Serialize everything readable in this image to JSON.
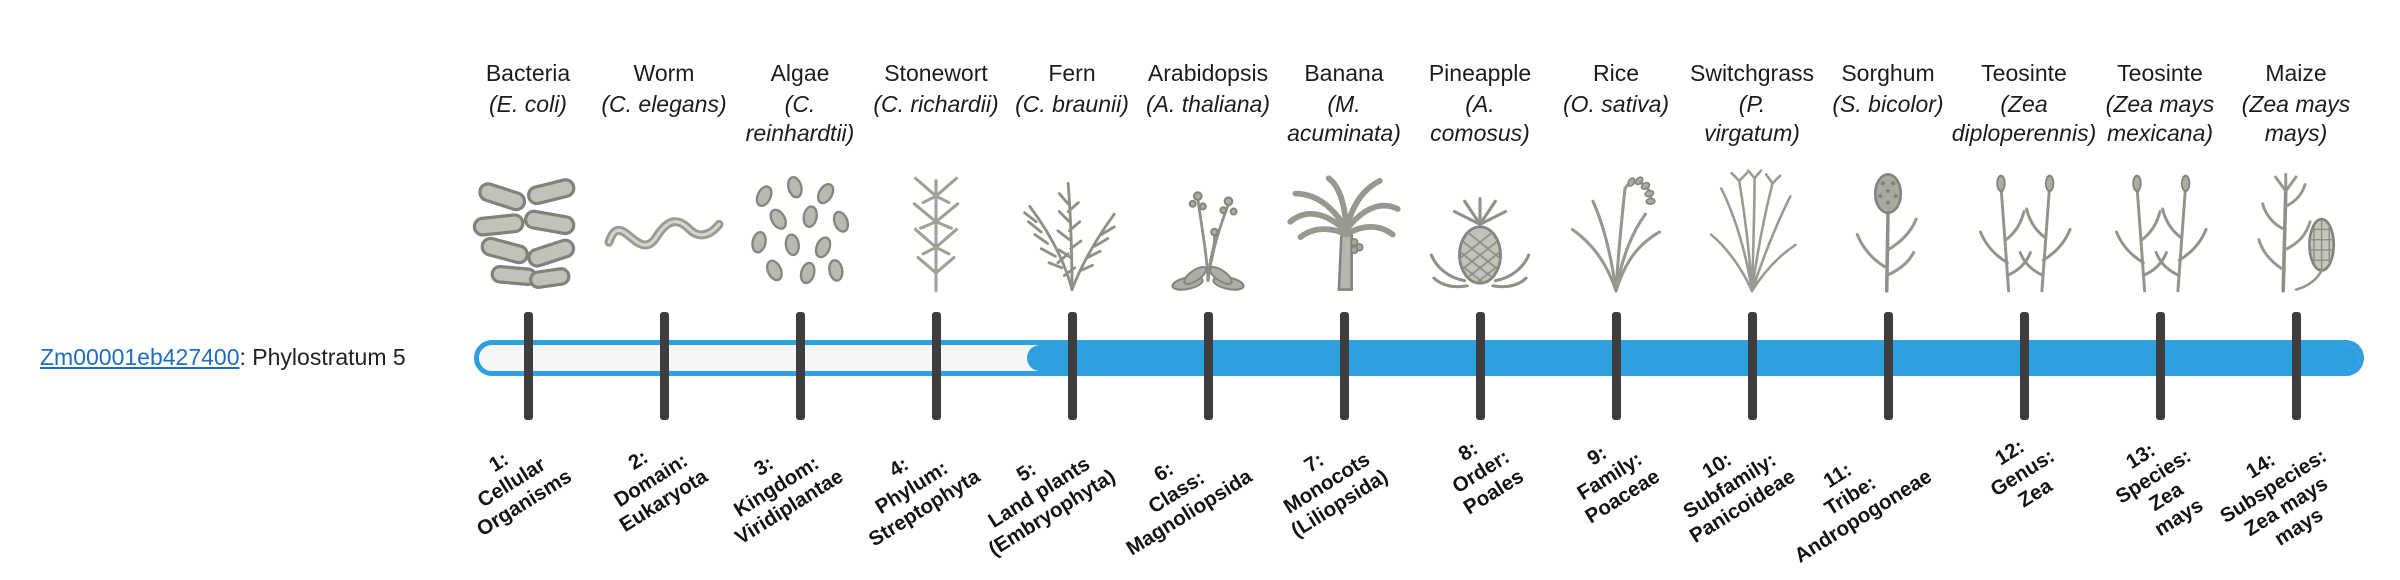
{
  "gene": {
    "id": "Zm00001eb427400",
    "suffix": ": Phylostratum 5",
    "phylostratum": 5,
    "link_color": "#1f6dbf"
  },
  "timeline": {
    "bar_color": "#2E9FDF",
    "bar_empty_color": "#f5f6f7",
    "tick_color": "#3d3d3d",
    "filled_from_stratum": 5,
    "columns": [
      {
        "common": "Bacteria",
        "sci": "(E. coli)",
        "icon": "bacteria",
        "stratum_label": "1:\nCellular\nOrganisms"
      },
      {
        "common": "Worm",
        "sci": "(C. elegans)",
        "icon": "worm",
        "stratum_label": "2:\nDomain:\nEukaryota"
      },
      {
        "common": "Algae",
        "sci": "(C.\nreinhardtii)",
        "icon": "algae",
        "stratum_label": "3:\nKingdom:\nViridiplantae"
      },
      {
        "common": "Stonewort",
        "sci": "(C. richardii)",
        "icon": "stonewort",
        "stratum_label": "4:\nPhylum:\nStreptophyta"
      },
      {
        "common": "Fern",
        "sci": "(C. braunii)",
        "icon": "fern",
        "stratum_label": "5:\nLand plants\n(Embryophyta)"
      },
      {
        "common": "Arabidopsis",
        "sci": "(A. thaliana)",
        "icon": "arabidopsis",
        "stratum_label": "6:\nClass:\nMagnoliopsida"
      },
      {
        "common": "Banana",
        "sci": "(M.\nacuminata)",
        "icon": "banana",
        "stratum_label": "7:\nMonocots\n(Liliopsida)"
      },
      {
        "common": "Pineapple",
        "sci": "(A.\ncomosus)",
        "icon": "pineapple",
        "stratum_label": "8:\nOrder:\nPoales"
      },
      {
        "common": "Rice",
        "sci": "(O. sativa)",
        "icon": "rice",
        "stratum_label": "9:\nFamily:\nPoaceae"
      },
      {
        "common": "Switchgrass",
        "sci": "(P.\nvirgatum)",
        "icon": "switchgrass",
        "stratum_label": "10:\nSubfamily:\nPanicoideae"
      },
      {
        "common": "Sorghum",
        "sci": "(S. bicolor)",
        "icon": "sorghum",
        "stratum_label": "11:\nTribe:\nAndropogoneae"
      },
      {
        "common": "Teosinte",
        "sci": "(Zea\ndiploperennis)",
        "icon": "teosinte",
        "stratum_label": "12:\nGenus:\nZea"
      },
      {
        "common": "Teosinte",
        "sci": "(Zea mays\nmexicana)",
        "icon": "teosinte",
        "stratum_label": "13:\nSpecies:\nZea\nmays"
      },
      {
        "common": "Maize",
        "sci": "(Zea mays\nmays)",
        "icon": "maize",
        "stratum_label": "14:\nSubspecies:\nZea mays\nmays"
      }
    ]
  }
}
